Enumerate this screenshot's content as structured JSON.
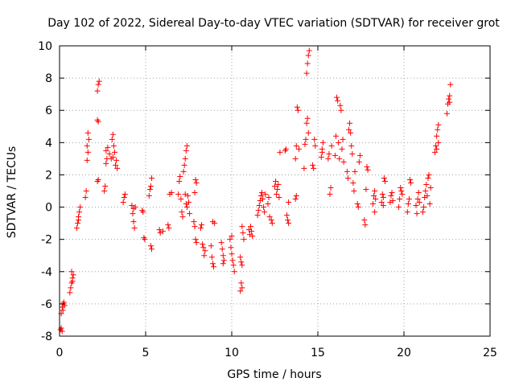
{
  "chart_data": {
    "type": "scatter",
    "title": "Day 102 of 2022, Sidereal Day-to-day VTEC variation (SDTVAR) for receiver grot",
    "xlabel": "GPS time / hours",
    "ylabel": "SDTVAR / TECUs",
    "xlim": [
      0,
      25
    ],
    "ylim": [
      -8,
      10
    ],
    "xticks": [
      "0",
      "5",
      "10",
      "15",
      "20",
      "25"
    ],
    "yticks": [
      "-8",
      "-6",
      "-4",
      "-2",
      "0",
      "2",
      "4",
      "6",
      "8",
      "10"
    ],
    "grid": true,
    "marker": "plus",
    "color": "#ff0000",
    "series": [
      {
        "name": "SDTVAR",
        "points": [
          [
            0.05,
            -7.6
          ],
          [
            0.1,
            -7.5
          ],
          [
            0.15,
            -7.7
          ],
          [
            0.1,
            -6.6
          ],
          [
            0.15,
            -6.2
          ],
          [
            0.2,
            -6.0
          ],
          [
            0.25,
            -5.9
          ],
          [
            0.3,
            -6.1
          ],
          [
            0.2,
            -6.4
          ],
          [
            0.6,
            -5.3
          ],
          [
            0.65,
            -5.0
          ],
          [
            0.7,
            -4.7
          ],
          [
            0.75,
            -4.4
          ],
          [
            0.8,
            -4.2
          ],
          [
            0.7,
            -4.0
          ],
          [
            0.75,
            -4.6
          ],
          [
            1.0,
            -1.3
          ],
          [
            1.05,
            -1.0
          ],
          [
            1.1,
            -0.6
          ],
          [
            1.15,
            -0.3
          ],
          [
            1.2,
            0.0
          ],
          [
            1.1,
            -0.8
          ],
          [
            1.5,
            0.6
          ],
          [
            1.55,
            1.0
          ],
          [
            1.6,
            2.9
          ],
          [
            1.65,
            3.4
          ],
          [
            1.6,
            3.8
          ],
          [
            1.7,
            4.2
          ],
          [
            1.65,
            4.6
          ],
          [
            2.2,
            1.6
          ],
          [
            2.25,
            1.7
          ],
          [
            2.2,
            5.4
          ],
          [
            2.25,
            5.3
          ],
          [
            2.2,
            7.2
          ],
          [
            2.25,
            7.6
          ],
          [
            2.3,
            7.8
          ],
          [
            2.6,
            1.0
          ],
          [
            2.65,
            1.3
          ],
          [
            2.7,
            2.7
          ],
          [
            2.75,
            3.0
          ],
          [
            2.7,
            3.5
          ],
          [
            2.8,
            3.7
          ],
          [
            2.9,
            3.3
          ],
          [
            3.0,
            3.0
          ],
          [
            3.05,
            4.2
          ],
          [
            3.1,
            4.5
          ],
          [
            3.15,
            3.8
          ],
          [
            3.2,
            3.4
          ],
          [
            3.25,
            2.6
          ],
          [
            3.3,
            2.9
          ],
          [
            3.35,
            2.4
          ],
          [
            3.1,
            3.1
          ],
          [
            3.7,
            0.3
          ],
          [
            3.75,
            0.6
          ],
          [
            3.8,
            0.8
          ],
          [
            4.2,
            0.1
          ],
          [
            4.25,
            -0.4
          ],
          [
            4.3,
            -0.9
          ],
          [
            4.35,
            -1.3
          ],
          [
            4.3,
            -0.1
          ],
          [
            4.4,
            0.0
          ],
          [
            4.8,
            -0.2
          ],
          [
            4.85,
            -0.3
          ],
          [
            4.9,
            -1.9
          ],
          [
            4.95,
            -2.0
          ],
          [
            5.3,
            -2.4
          ],
          [
            5.35,
            -2.6
          ],
          [
            5.2,
            0.7
          ],
          [
            5.25,
            1.1
          ],
          [
            5.3,
            1.3
          ],
          [
            5.35,
            1.8
          ],
          [
            5.8,
            -1.4
          ],
          [
            5.85,
            -1.6
          ],
          [
            6.0,
            -1.5
          ],
          [
            6.3,
            -1.1
          ],
          [
            6.35,
            -1.3
          ],
          [
            6.4,
            0.8
          ],
          [
            6.5,
            0.9
          ],
          [
            6.9,
            0.8
          ],
          [
            6.95,
            1.6
          ],
          [
            7.0,
            1.9
          ],
          [
            7.05,
            0.5
          ],
          [
            7.1,
            -0.3
          ],
          [
            7.15,
            -0.6
          ],
          [
            7.2,
            2.2
          ],
          [
            7.25,
            2.6
          ],
          [
            7.3,
            3.0
          ],
          [
            7.35,
            3.5
          ],
          [
            7.4,
            3.8
          ],
          [
            7.3,
            0.8
          ],
          [
            7.35,
            0.2
          ],
          [
            7.4,
            0.0
          ],
          [
            7.5,
            0.3
          ],
          [
            7.45,
            0.7
          ],
          [
            7.55,
            -0.4
          ],
          [
            7.8,
            -0.9
          ],
          [
            7.85,
            -1.2
          ],
          [
            7.9,
            -2.0
          ],
          [
            7.95,
            -2.2
          ],
          [
            7.85,
            0.9
          ],
          [
            7.9,
            1.7
          ],
          [
            7.95,
            1.5
          ],
          [
            8.2,
            -1.3
          ],
          [
            8.25,
            -1.1
          ],
          [
            8.3,
            -2.3
          ],
          [
            8.35,
            -2.5
          ],
          [
            8.4,
            -3.0
          ],
          [
            8.45,
            -2.7
          ],
          [
            8.8,
            -2.4
          ],
          [
            8.85,
            -3.1
          ],
          [
            8.9,
            -3.5
          ],
          [
            8.95,
            -3.7
          ],
          [
            8.9,
            -0.9
          ],
          [
            9.0,
            -1.0
          ],
          [
            9.4,
            -2.2
          ],
          [
            9.45,
            -2.6
          ],
          [
            9.5,
            -3.0
          ],
          [
            9.55,
            -3.3
          ],
          [
            9.5,
            -3.5
          ],
          [
            9.9,
            -2.0
          ],
          [
            9.95,
            -2.5
          ],
          [
            10.0,
            -2.9
          ],
          [
            10.05,
            -3.3
          ],
          [
            10.1,
            -3.6
          ],
          [
            10.15,
            -4.0
          ],
          [
            10.0,
            -1.8
          ],
          [
            10.5,
            -3.1
          ],
          [
            10.55,
            -3.4
          ],
          [
            10.6,
            -3.6
          ],
          [
            10.55,
            -4.7
          ],
          [
            10.6,
            -5.0
          ],
          [
            10.5,
            -5.2
          ],
          [
            10.6,
            -1.2
          ],
          [
            10.65,
            -1.6
          ],
          [
            10.7,
            -2.0
          ],
          [
            11.0,
            -1.4
          ],
          [
            11.05,
            -1.7
          ],
          [
            11.1,
            -1.2
          ],
          [
            11.15,
            -1.5
          ],
          [
            11.2,
            -1.8
          ],
          [
            11.5,
            -0.5
          ],
          [
            11.55,
            -0.2
          ],
          [
            11.6,
            0.1
          ],
          [
            11.65,
            0.4
          ],
          [
            11.7,
            0.7
          ],
          [
            11.75,
            0.9
          ],
          [
            11.8,
            0.5
          ],
          [
            11.85,
            0.0
          ],
          [
            11.9,
            -0.3
          ],
          [
            11.95,
            0.8
          ],
          [
            12.1,
            0.2
          ],
          [
            12.15,
            0.6
          ],
          [
            12.2,
            -0.6
          ],
          [
            12.3,
            -0.8
          ],
          [
            12.35,
            -1.0
          ],
          [
            12.5,
            1.3
          ],
          [
            12.55,
            1.6
          ],
          [
            12.6,
            0.8
          ],
          [
            12.65,
            1.1
          ],
          [
            12.7,
            1.4
          ],
          [
            12.75,
            0.6
          ],
          [
            12.8,
            3.4
          ],
          [
            13.1,
            3.5
          ],
          [
            13.15,
            3.6
          ],
          [
            13.2,
            -0.5
          ],
          [
            13.25,
            -0.8
          ],
          [
            13.3,
            -1.0
          ],
          [
            13.3,
            0.3
          ],
          [
            13.7,
            0.5
          ],
          [
            13.75,
            0.7
          ],
          [
            13.7,
            3.0
          ],
          [
            13.75,
            3.8
          ],
          [
            13.8,
            6.2
          ],
          [
            13.85,
            6.0
          ],
          [
            13.9,
            3.6
          ],
          [
            14.2,
            2.4
          ],
          [
            14.25,
            3.9
          ],
          [
            14.3,
            4.2
          ],
          [
            14.35,
            5.2
          ],
          [
            14.4,
            5.5
          ],
          [
            14.35,
            8.3
          ],
          [
            14.4,
            8.9
          ],
          [
            14.45,
            9.4
          ],
          [
            14.5,
            9.7
          ],
          [
            14.45,
            4.6
          ],
          [
            14.7,
            2.6
          ],
          [
            14.75,
            2.4
          ],
          [
            14.8,
            4.2
          ],
          [
            14.85,
            3.8
          ],
          [
            15.2,
            3.1
          ],
          [
            15.25,
            3.6
          ],
          [
            15.3,
            4.0
          ],
          [
            15.25,
            3.4
          ],
          [
            15.6,
            3.0
          ],
          [
            15.65,
            3.3
          ],
          [
            15.7,
            0.8
          ],
          [
            15.75,
            1.2
          ],
          [
            15.8,
            3.8
          ],
          [
            16.0,
            3.2
          ],
          [
            16.05,
            4.4
          ],
          [
            16.1,
            6.8
          ],
          [
            16.15,
            6.6
          ],
          [
            16.2,
            4.0
          ],
          [
            16.25,
            3.0
          ],
          [
            16.3,
            6.3
          ],
          [
            16.35,
            6.0
          ],
          [
            16.4,
            3.6
          ],
          [
            16.45,
            4.2
          ],
          [
            16.5,
            2.8
          ],
          [
            16.7,
            2.2
          ],
          [
            16.75,
            1.8
          ],
          [
            16.8,
            4.8
          ],
          [
            16.85,
            5.2
          ],
          [
            16.9,
            4.6
          ],
          [
            16.95,
            3.8
          ],
          [
            17.0,
            3.3
          ],
          [
            17.05,
            1.5
          ],
          [
            17.1,
            1.0
          ],
          [
            17.15,
            2.2
          ],
          [
            17.3,
            0.2
          ],
          [
            17.35,
            0.0
          ],
          [
            17.4,
            2.8
          ],
          [
            17.45,
            3.2
          ],
          [
            17.7,
            -0.8
          ],
          [
            17.75,
            -1.1
          ],
          [
            17.8,
            1.1
          ],
          [
            17.85,
            2.5
          ],
          [
            17.9,
            2.3
          ],
          [
            18.2,
            0.2
          ],
          [
            18.25,
            0.7
          ],
          [
            18.3,
            1.0
          ],
          [
            18.35,
            0.5
          ],
          [
            18.3,
            -0.3
          ],
          [
            18.7,
            0.3
          ],
          [
            18.75,
            0.8
          ],
          [
            18.8,
            0.6
          ],
          [
            18.85,
            1.8
          ],
          [
            18.9,
            1.6
          ],
          [
            18.8,
            0.1
          ],
          [
            19.2,
            0.3
          ],
          [
            19.25,
            0.7
          ],
          [
            19.3,
            0.9
          ],
          [
            19.35,
            0.4
          ],
          [
            19.7,
            0.0
          ],
          [
            19.75,
            0.5
          ],
          [
            19.8,
            1.2
          ],
          [
            19.85,
            1.0
          ],
          [
            19.9,
            0.8
          ],
          [
            20.2,
            -0.3
          ],
          [
            20.25,
            0.2
          ],
          [
            20.3,
            0.5
          ],
          [
            20.35,
            1.7
          ],
          [
            20.4,
            1.5
          ],
          [
            20.7,
            0.1
          ],
          [
            20.75,
            -0.4
          ],
          [
            20.8,
            0.5
          ],
          [
            20.85,
            0.9
          ],
          [
            20.9,
            0.3
          ],
          [
            21.1,
            -0.3
          ],
          [
            21.15,
            0.0
          ],
          [
            21.2,
            0.6
          ],
          [
            21.25,
            1.0
          ],
          [
            21.3,
            1.4
          ],
          [
            21.35,
            0.7
          ],
          [
            21.4,
            1.8
          ],
          [
            21.45,
            2.0
          ],
          [
            21.5,
            0.2
          ],
          [
            21.55,
            1.2
          ],
          [
            21.8,
            3.4
          ],
          [
            21.85,
            3.8
          ],
          [
            21.9,
            4.4
          ],
          [
            21.95,
            4.8
          ],
          [
            22.0,
            5.1
          ],
          [
            21.9,
            3.6
          ],
          [
            22.0,
            4.0
          ],
          [
            22.5,
            5.8
          ],
          [
            22.55,
            6.4
          ],
          [
            22.6,
            6.7
          ],
          [
            22.65,
            6.9
          ],
          [
            22.7,
            7.6
          ],
          [
            22.65,
            6.5
          ]
        ]
      }
    ]
  }
}
